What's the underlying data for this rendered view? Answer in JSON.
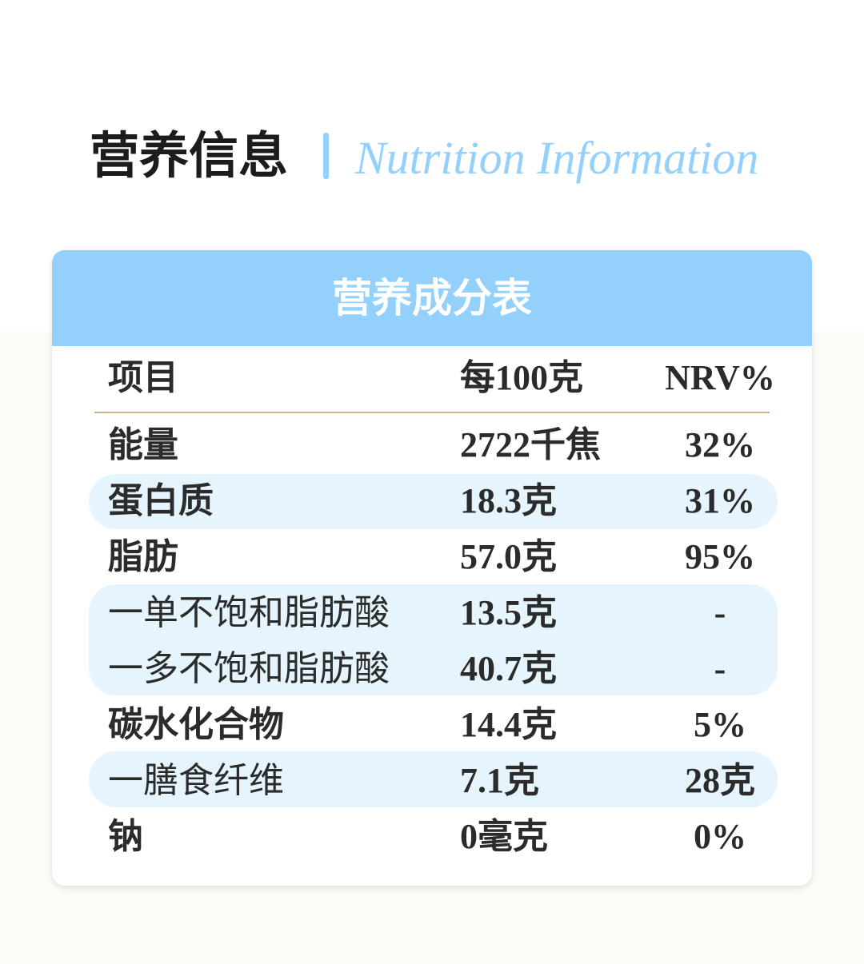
{
  "header": {
    "title": "营养信息",
    "subtitle": "Nutrition Information"
  },
  "table": {
    "title": "营养成分表",
    "columns": [
      "项目",
      "每100克",
      "NRV%"
    ],
    "rows": [
      [
        "能量",
        "2722千焦",
        "32%"
      ],
      [
        "蛋白质",
        "18.3克",
        "31%"
      ],
      [
        "脂肪",
        "57.0克",
        "95%"
      ],
      [
        "一单不饱和脂肪酸",
        "13.5克",
        "-"
      ],
      [
        "一多不饱和脂肪酸",
        "40.7克",
        "-"
      ],
      [
        "碳水化合物",
        "14.4克",
        "5%"
      ],
      [
        "一膳食纤维",
        "7.1克",
        "28克"
      ],
      [
        "钠",
        "0毫克",
        "0%"
      ]
    ]
  }
}
